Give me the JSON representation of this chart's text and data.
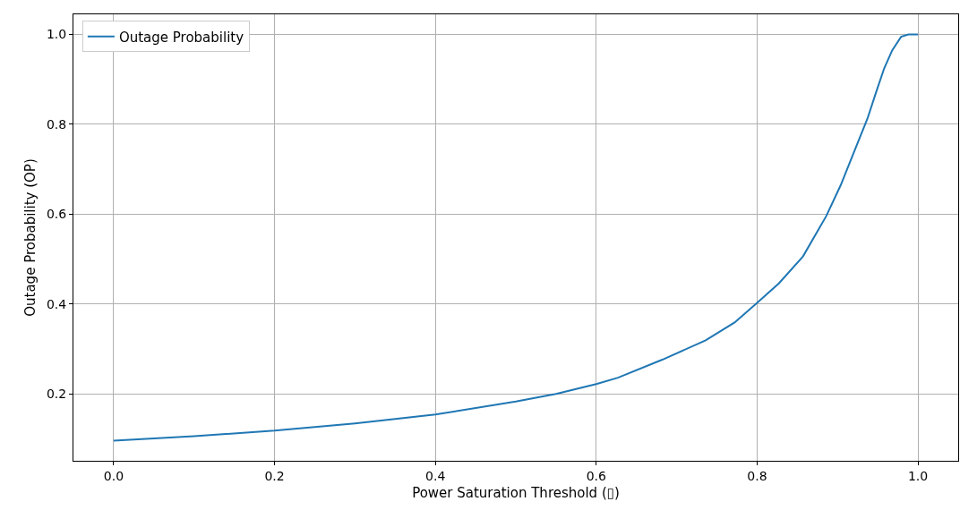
{
  "chart_data": {
    "type": "line",
    "xlabel": "Power Saturation Threshold (▯)",
    "ylabel": "Outage Probability (OP)",
    "x": [
      0,
      0.1,
      0.2,
      0.3,
      0.4,
      0.5,
      0.55,
      0.6,
      0.627,
      0.682,
      0.736,
      0.772,
      0.799,
      0.827,
      0.857,
      0.886,
      0.904,
      0.919,
      0.937,
      0.948,
      0.958,
      0.968,
      0.979,
      0.988,
      1.0
    ],
    "series": [
      {
        "name": "Outage Probability",
        "color": "#1f77b4",
        "values": [
          0.096,
          0.106,
          0.118,
          0.134,
          0.154,
          0.183,
          0.2,
          0.222,
          0.236,
          0.276,
          0.319,
          0.359,
          0.401,
          0.446,
          0.506,
          0.596,
          0.665,
          0.732,
          0.812,
          0.872,
          0.925,
          0.965,
          0.995,
          1.0,
          1.0
        ]
      }
    ],
    "xlim": [
      -0.05,
      1.05
    ],
    "xticks": [
      {
        "value": 0,
        "label": "0.0"
      },
      0.2,
      0.4,
      0.6,
      0.8,
      {
        "value": 1,
        "label": "1.0"
      }
    ],
    "ylim": [
      0.051,
      1.045
    ],
    "yticks": [
      0.2,
      0.4,
      0.6,
      0.8,
      {
        "value": 1,
        "label": "1.0"
      }
    ],
    "grid": true,
    "legend": "top left",
    "marker": "none",
    "line_style": "solid"
  }
}
